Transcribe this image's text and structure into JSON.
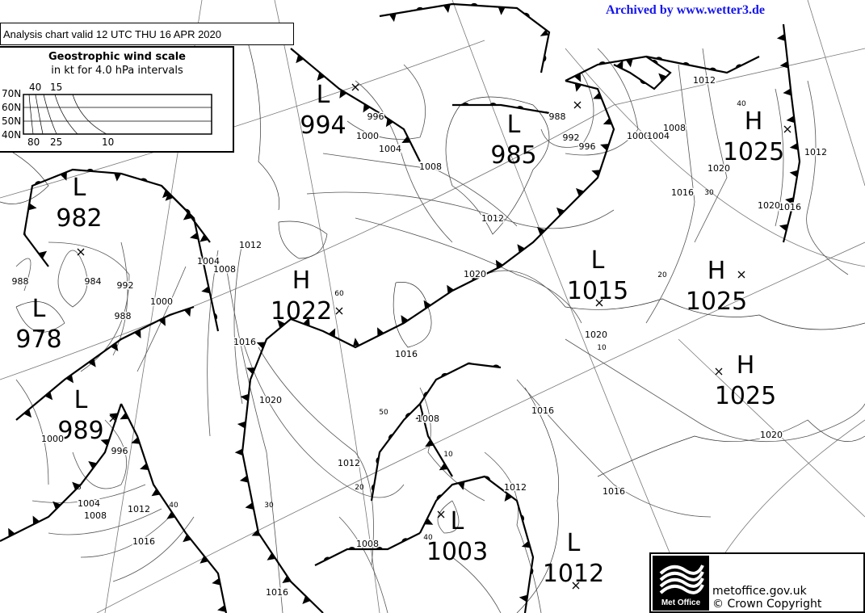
{
  "archive_credit": "Archived by www.wetter3.de",
  "chart_title": "Analysis chart  valid 12 UTC THU 16  APR 2020",
  "wind_scale": {
    "title": "Geostrophic wind scale",
    "subtitle": "in kt for 4.0 hPa intervals",
    "latitudes": [
      "70N",
      "60N",
      "50N",
      "40N"
    ],
    "top_labels": [
      "40",
      "15"
    ],
    "bottom_labels": [
      "80",
      "25",
      "10"
    ]
  },
  "pressure_centers": [
    {
      "type": "L",
      "value": "994"
    },
    {
      "type": "L",
      "value": "985"
    },
    {
      "type": "L",
      "value": "982"
    },
    {
      "type": "L",
      "value": "978"
    },
    {
      "type": "L",
      "value": "989"
    },
    {
      "type": "H",
      "value": "1022"
    },
    {
      "type": "L",
      "value": "1015"
    },
    {
      "type": "H",
      "value": "1025"
    },
    {
      "type": "H",
      "value": "1025"
    },
    {
      "type": "H",
      "value": "1025"
    },
    {
      "type": "L",
      "value": "1003"
    },
    {
      "type": "L",
      "value": "1012"
    }
  ],
  "isobar_labels": [
    "996",
    "1000",
    "1004",
    "1008",
    "1012",
    "1020",
    "1016",
    "988",
    "992",
    "996",
    "1000",
    "1004",
    "1008",
    "1012",
    "1016",
    "1020",
    "1012",
    "1016",
    "1020",
    "1020",
    "1016",
    "1020",
    "1016",
    "1012",
    "1008",
    "1012",
    "1020",
    "1016",
    "1012",
    "1008",
    "1004",
    "1000",
    "992",
    "988",
    "984",
    "988",
    "1000",
    "996",
    "1004",
    "1008",
    "1012",
    "1016",
    "1016",
    "1008"
  ],
  "latitude_wind_labels": [
    "60",
    "50",
    "10",
    "20",
    "30",
    "40",
    "40",
    "5",
    "10",
    "20",
    "30",
    "40"
  ],
  "logo": {
    "name": "Met Office",
    "url": "metoffice.gov.uk",
    "copyright": "© Crown Copyright"
  },
  "colors": {
    "archive_link": "#1515ee",
    "lines": "#000000",
    "isobars": "#555555"
  }
}
